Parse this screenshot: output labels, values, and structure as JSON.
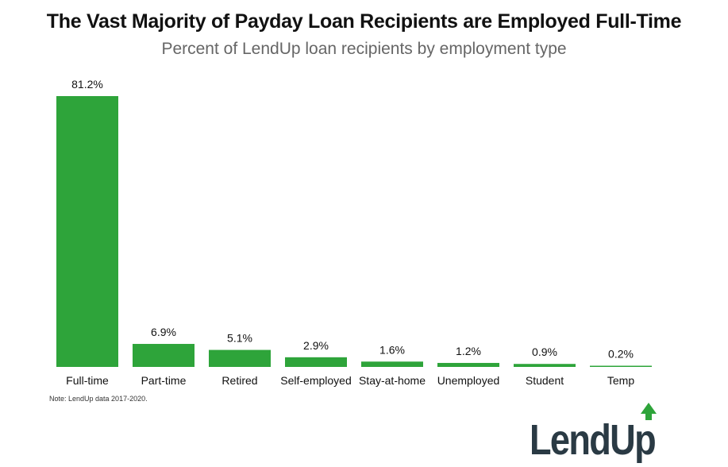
{
  "title": "The Vast Majority of Payday Loan Recipients are Employed Full-Time",
  "subtitle": "Percent of LendUp loan recipients by employment type",
  "note": "Note: LendUp data 2017-2020.",
  "logo": {
    "text": "LendUp",
    "icon": "up-arrow-icon"
  },
  "colors": {
    "bar": "#2ea43a",
    "logo_text": "#2a3a44",
    "logo_arrow": "#2ea43a"
  },
  "chart_data": {
    "type": "bar",
    "categories": [
      "Full-time",
      "Part-time",
      "Retired",
      "Self-employed",
      "Stay-at-home",
      "Unemployed",
      "Student",
      "Temp"
    ],
    "values": [
      81.2,
      6.9,
      5.1,
      2.9,
      1.6,
      1.2,
      0.9,
      0.2
    ],
    "data_labels": [
      "81.2%",
      "6.9%",
      "5.1%",
      "2.9%",
      "1.6%",
      "1.2%",
      "0.9%",
      "0.2%"
    ],
    "title": "The Vast Majority of Payday Loan Recipients are Employed Full-Time",
    "subtitle": "Percent of LendUp loan recipients by employment type",
    "xlabel": "",
    "ylabel": "",
    "ylim": [
      0,
      81.2
    ],
    "grid": false,
    "legend": "none"
  }
}
